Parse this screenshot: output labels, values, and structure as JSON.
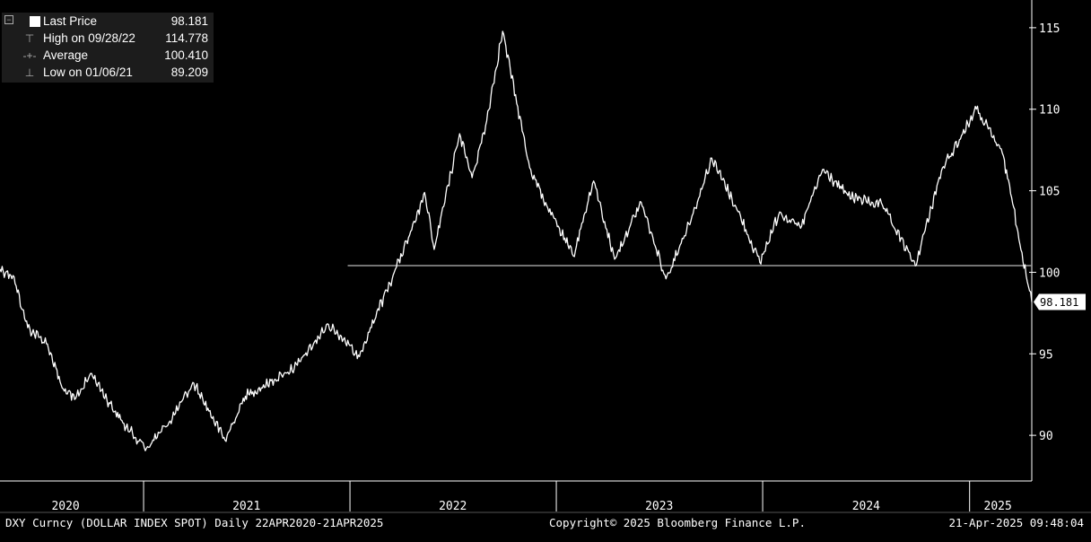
{
  "legend": {
    "last_label": "Last Price",
    "last_value": "98.181",
    "high_label": "High on 09/28/22",
    "high_value": "114.778",
    "avg_label": "Average",
    "avg_value": "100.410",
    "low_label": "Low on 01/06/21",
    "low_value": "89.209"
  },
  "footer": {
    "left": "DXY Curncy (DOLLAR INDEX SPOT)  Daily 22APR2020-21APR2025",
    "center": "Copyright© 2025 Bloomberg Finance L.P.",
    "right": "21-Apr-2025 09:48:04"
  },
  "colors": {
    "background": "#000000",
    "line": "#ffffff",
    "average_line": "#9a9a9a",
    "panel": "#1c1c1c"
  },
  "chart_data": {
    "type": "line",
    "series": [
      {
        "name": "Last Price",
        "x": [
          "2020-04-22",
          "2020-05-15",
          "2020-06-10",
          "2020-07-15",
          "2020-08-10",
          "2020-09-01",
          "2020-10-01",
          "2020-11-01",
          "2020-12-01",
          "2021-01-06",
          "2021-02-15",
          "2021-03-31",
          "2021-05-25",
          "2021-06-30",
          "2021-08-20",
          "2021-09-30",
          "2021-11-24",
          "2021-12-30",
          "2022-01-14",
          "2022-03-07",
          "2022-04-28",
          "2022-05-13",
          "2022-05-30",
          "2022-07-14",
          "2022-08-05",
          "2022-08-29",
          "2022-09-28",
          "2022-11-15",
          "2022-12-15",
          "2023-01-31",
          "2023-03-08",
          "2023-04-14",
          "2023-05-31",
          "2023-07-14",
          "2023-08-31",
          "2023-10-03",
          "2023-11-15",
          "2023-12-27",
          "2024-01-31",
          "2024-03-08",
          "2024-04-16",
          "2024-05-31",
          "2024-07-31",
          "2024-09-27",
          "2024-11-12",
          "2025-01-13",
          "2025-02-28",
          "2025-03-20",
          "2025-04-11",
          "2025-04-21"
        ],
        "values": [
          100.2,
          99.8,
          96.6,
          95.6,
          92.9,
          92.2,
          93.8,
          92.0,
          90.5,
          89.21,
          90.8,
          93.2,
          89.7,
          92.4,
          93.4,
          94.3,
          96.8,
          95.6,
          94.7,
          98.9,
          103.2,
          104.9,
          101.4,
          108.5,
          105.8,
          109.0,
          114.78,
          106.4,
          104.1,
          101.0,
          105.6,
          100.8,
          104.3,
          99.6,
          103.6,
          107.0,
          104.0,
          100.6,
          103.7,
          102.7,
          106.3,
          104.7,
          104.1,
          100.4,
          106.2,
          110.0,
          107.3,
          104.0,
          99.8,
          98.18
        ]
      }
    ],
    "average": 100.41,
    "high": {
      "value": 114.778,
      "date": "09/28/22"
    },
    "low": {
      "value": 89.209,
      "date": "01/06/21"
    },
    "last": 98.181,
    "xlim": [
      "2020-04-22",
      "2025-04-21"
    ],
    "ylim": [
      87.2,
      116.7
    ],
    "yticks": [
      90,
      95,
      100,
      105,
      110,
      115
    ],
    "ytick_labels": [
      "90",
      "95",
      "100",
      "105",
      "110",
      "115"
    ],
    "year_labels": [
      {
        "label": "2020",
        "date": "2020-08-16"
      },
      {
        "label": "2021",
        "date": "2021-07-02"
      },
      {
        "label": "2022",
        "date": "2022-07-02"
      },
      {
        "label": "2023",
        "date": "2023-07-02"
      },
      {
        "label": "2024",
        "date": "2024-07-02"
      },
      {
        "label": "2025",
        "date": "2025-02-20"
      }
    ],
    "year_dividers": [
      "2021-01-01",
      "2022-01-01",
      "2023-01-01",
      "2024-01-01",
      "2025-01-01"
    ],
    "last_price_label": "98.181",
    "grid": false
  }
}
